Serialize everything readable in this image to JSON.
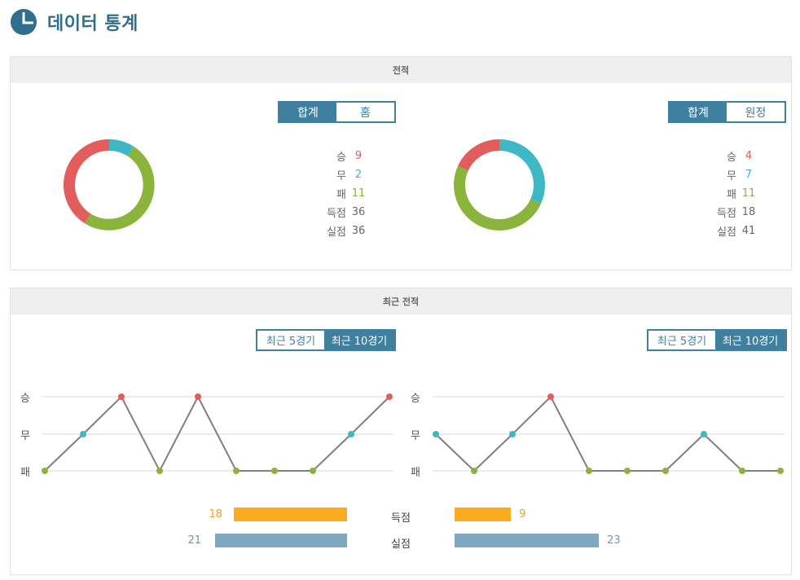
{
  "header": {
    "title": "데이터 통계",
    "logo_icon": "pie-chart-icon"
  },
  "record": {
    "section_title": "전적",
    "left": {
      "toggle": {
        "active": "합계",
        "inactive": "홈"
      },
      "stats": [
        {
          "label": "승",
          "value": "9",
          "kind": "win"
        },
        {
          "label": "무",
          "value": "2",
          "kind": "draw"
        },
        {
          "label": "패",
          "value": "11",
          "kind": "lose"
        },
        {
          "label": "득점",
          "value": "36",
          "kind": "plain"
        },
        {
          "label": "실점",
          "value": "36",
          "kind": "plain"
        }
      ],
      "donut": {
        "win": 9,
        "draw": 2,
        "lose": 11
      }
    },
    "right": {
      "toggle": {
        "active": "합계",
        "inactive": "원정"
      },
      "stats": [
        {
          "label": "승",
          "value": "4",
          "kind": "win"
        },
        {
          "label": "무",
          "value": "7",
          "kind": "draw"
        },
        {
          "label": "패",
          "value": "11",
          "kind": "lose"
        },
        {
          "label": "득점",
          "value": "18",
          "kind": "plain"
        },
        {
          "label": "실점",
          "value": "41",
          "kind": "plain"
        }
      ],
      "donut": {
        "win": 4,
        "draw": 7,
        "lose": 11
      }
    }
  },
  "recent": {
    "section_title": "최근 전적",
    "toggle": {
      "inactive": "최근 5경기",
      "active": "최근 10경기"
    },
    "y_labels": [
      "승",
      "무",
      "패"
    ],
    "left_results": [
      "패",
      "무",
      "승",
      "패",
      "승",
      "패",
      "패",
      "패",
      "무",
      "승"
    ],
    "right_results": [
      "무",
      "패",
      "무",
      "승",
      "패",
      "패",
      "패",
      "무",
      "패",
      "패"
    ],
    "goals_label": "득점",
    "conceded_label": "실점",
    "left_goals": 18,
    "left_conceded": 21,
    "right_goals": 9,
    "right_conceded": 23
  },
  "colors": {
    "win": "#e35d5d",
    "draw": "#3db8c4",
    "lose": "#8ab43c",
    "accent": "#3f7fa0",
    "goals_bar": "#fcab1f",
    "conceded_bar": "#7ea8bf"
  }
}
